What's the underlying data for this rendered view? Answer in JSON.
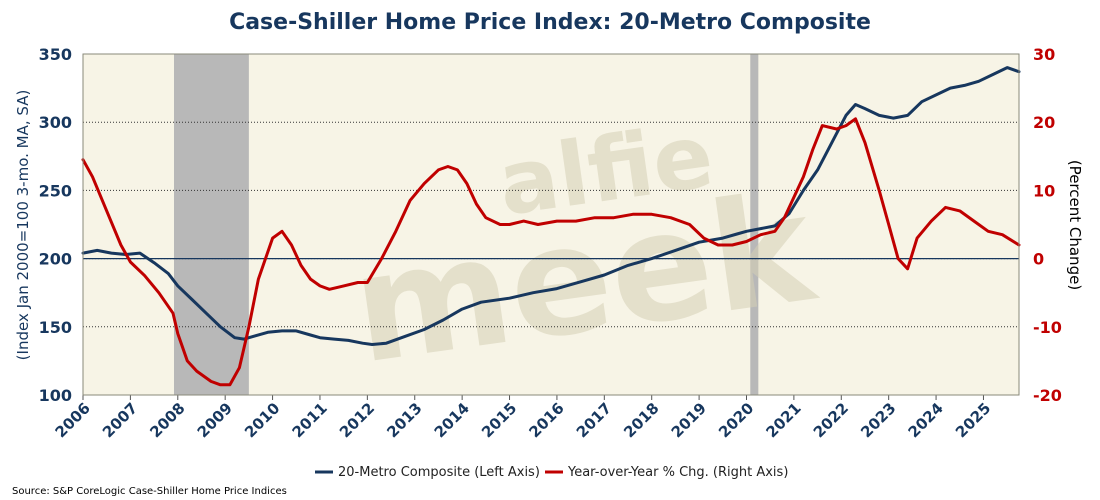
{
  "chart_data": {
    "type": "line",
    "title": "Case-Shiller Home Price Index: 20-Metro Composite",
    "ylabel_left": "(Index Jan 2000=100 3-mo. MA, SA)",
    "ylabel_right": "(Percent Change)",
    "ylim_left": [
      100,
      350
    ],
    "ylim_right": [
      -20,
      30
    ],
    "xlim": [
      2006,
      2025.75
    ],
    "x_ticks": [
      "2006",
      "2007",
      "2008",
      "2009",
      "2010",
      "2011",
      "2012",
      "2013",
      "2014",
      "2015",
      "2016",
      "2017",
      "2018",
      "2019",
      "2020",
      "2021",
      "2022",
      "2023",
      "2024",
      "2025"
    ],
    "y_ticks_left": [
      100,
      150,
      200,
      250,
      300,
      350
    ],
    "y_ticks_right": [
      -20,
      -10,
      0,
      10,
      20,
      30
    ],
    "grid": "horizontal dotted",
    "legend_position": "bottom",
    "recessions": [
      [
        2007.92,
        2009.5
      ],
      [
        2020.08,
        2020.25
      ]
    ],
    "series": [
      {
        "name": "20-Metro Composite (Left Axis)",
        "axis": "left",
        "color": "#17375e",
        "x": [
          2006.0,
          2006.3,
          2006.6,
          2006.9,
          2007.2,
          2007.5,
          2007.8,
          2008.0,
          2008.3,
          2008.6,
          2008.9,
          2009.2,
          2009.4,
          2009.6,
          2009.9,
          2010.2,
          2010.5,
          2010.8,
          2011.0,
          2011.3,
          2011.6,
          2011.9,
          2012.1,
          2012.4,
          2012.8,
          2013.2,
          2013.6,
          2014.0,
          2014.4,
          2015.0,
          2015.5,
          2016.0,
          2016.5,
          2017.0,
          2017.5,
          2018.0,
          2018.5,
          2019.0,
          2019.5,
          2019.8,
          2020.0,
          2020.3,
          2020.6,
          2020.9,
          2021.2,
          2021.5,
          2021.8,
          2022.1,
          2022.3,
          2022.5,
          2022.8,
          2023.1,
          2023.4,
          2023.7,
          2024.0,
          2024.3,
          2024.6,
          2024.9,
          2025.2,
          2025.5,
          2025.75
        ],
        "values": [
          204,
          206,
          204,
          203,
          204,
          197,
          189,
          180,
          170,
          160,
          150,
          142,
          141,
          143,
          146,
          147,
          147,
          144,
          142,
          141,
          140,
          138,
          137,
          138,
          143,
          148,
          155,
          163,
          168,
          171,
          175,
          178,
          183,
          188,
          195,
          200,
          206,
          212,
          215,
          218,
          220,
          222,
          224,
          233,
          250,
          265,
          285,
          305,
          313,
          310,
          305,
          303,
          305,
          315,
          320,
          325,
          327,
          330,
          335,
          340,
          337
        ]
      },
      {
        "name": "Year-over-Year % Chg. (Right Axis)",
        "axis": "right",
        "color": "#c00000",
        "x": [
          2006.0,
          2006.2,
          2006.5,
          2006.8,
          2007.0,
          2007.3,
          2007.6,
          2007.9,
          2008.0,
          2008.2,
          2008.4,
          2008.7,
          2008.9,
          2009.1,
          2009.3,
          2009.5,
          2009.7,
          2010.0,
          2010.2,
          2010.4,
          2010.6,
          2010.8,
          2011.0,
          2011.2,
          2011.5,
          2011.8,
          2012.0,
          2012.3,
          2012.6,
          2012.9,
          2013.2,
          2013.5,
          2013.7,
          2013.9,
          2014.1,
          2014.3,
          2014.5,
          2014.8,
          2015.0,
          2015.3,
          2015.6,
          2016.0,
          2016.4,
          2016.8,
          2017.2,
          2017.6,
          2018.0,
          2018.4,
          2018.8,
          2019.1,
          2019.4,
          2019.7,
          2020.0,
          2020.3,
          2020.6,
          2020.8,
          2021.0,
          2021.2,
          2021.4,
          2021.6,
          2021.9,
          2022.1,
          2022.3,
          2022.5,
          2022.8,
          2023.0,
          2023.2,
          2023.4,
          2023.6,
          2023.9,
          2024.2,
          2024.5,
          2024.8,
          2025.1,
          2025.4,
          2025.75
        ],
        "values": [
          14.5,
          12,
          7,
          2,
          -0.5,
          -2.5,
          -5,
          -8,
          -11,
          -15,
          -16.5,
          -18,
          -18.5,
          -18.5,
          -16,
          -10,
          -3,
          3,
          4,
          2,
          -1,
          -3,
          -4,
          -4.5,
          -4,
          -3.5,
          -3.5,
          0,
          4,
          8.5,
          11,
          13,
          13.5,
          13,
          11,
          8,
          6,
          5,
          5,
          5.5,
          5,
          5.5,
          5.5,
          6,
          6,
          6.5,
          6.5,
          6,
          5,
          3,
          2,
          2,
          2.5,
          3.5,
          4,
          6,
          9,
          12,
          16,
          19.5,
          19,
          19.5,
          20.5,
          17,
          10,
          5,
          0,
          -1.5,
          3,
          5.5,
          7.5,
          7,
          5.5,
          4,
          3.5,
          2
        ]
      }
    ]
  },
  "legend": {
    "items": [
      {
        "label": "20-Metro Composite (Left Axis)",
        "color": "#17375e"
      },
      {
        "label": "Year-over-Year % Chg. (Right Axis)",
        "color": "#c00000"
      }
    ]
  },
  "footer": {
    "source": "Source: S&P CoreLogic Case-Shiller Home Price Indices"
  },
  "watermark": {
    "brand": "alfie meek"
  },
  "colors": {
    "plot_background": "#f7f4e6",
    "recession_shade": "#b8b8b8",
    "left_axis": "#17375e",
    "right_axis": "#c00000"
  }
}
